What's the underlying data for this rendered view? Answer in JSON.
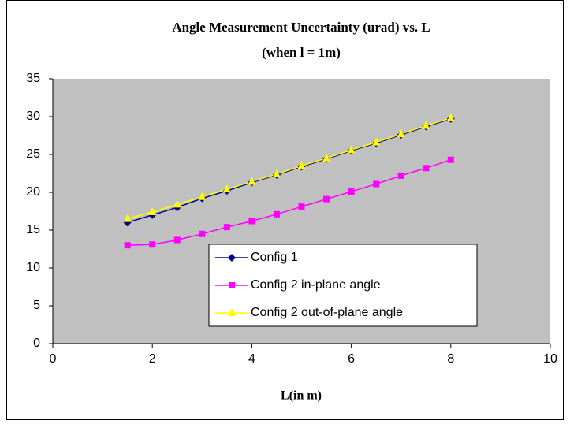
{
  "chart_data": {
    "type": "line",
    "title": "Angle Measurement Uncertainty (urad) vs. L",
    "subtitle": "(when l = 1m)",
    "x_label": "L(in m)",
    "x": [
      1.5,
      2,
      2.5,
      3,
      3.5,
      4,
      4.5,
      5,
      5.5,
      6,
      6.5,
      7,
      7.5,
      8
    ],
    "series": [
      {
        "name": "Config 1",
        "color": "#000080",
        "marker": "diamond",
        "values": [
          16.0,
          17.0,
          18.0,
          19.2,
          20.2,
          21.3,
          22.3,
          23.4,
          24.4,
          25.5,
          26.5,
          27.6,
          28.7,
          29.7
        ]
      },
      {
        "name": "Config 2 in-plane angle",
        "color": "#ff00ff",
        "marker": "square",
        "values": [
          13.0,
          13.1,
          13.7,
          14.5,
          15.4,
          16.2,
          17.1,
          18.1,
          19.1,
          20.1,
          21.1,
          22.2,
          23.2,
          24.3
        ]
      },
      {
        "name": "Config 2 out-of-plane angle",
        "color": "#ffff00",
        "marker": "triangle",
        "values": [
          16.5,
          17.4,
          18.4,
          19.4,
          20.4,
          21.4,
          22.4,
          23.5,
          24.5,
          25.6,
          26.6,
          27.7,
          28.8,
          29.8
        ]
      }
    ],
    "xlim": [
      0,
      10
    ],
    "xticks": [
      0,
      2,
      4,
      6,
      8,
      10
    ],
    "ylim": [
      0,
      35
    ],
    "yticks": [
      0,
      5,
      10,
      15,
      20,
      25,
      30,
      35
    ],
    "grid": false,
    "plot_background": "#c0c0c0"
  }
}
